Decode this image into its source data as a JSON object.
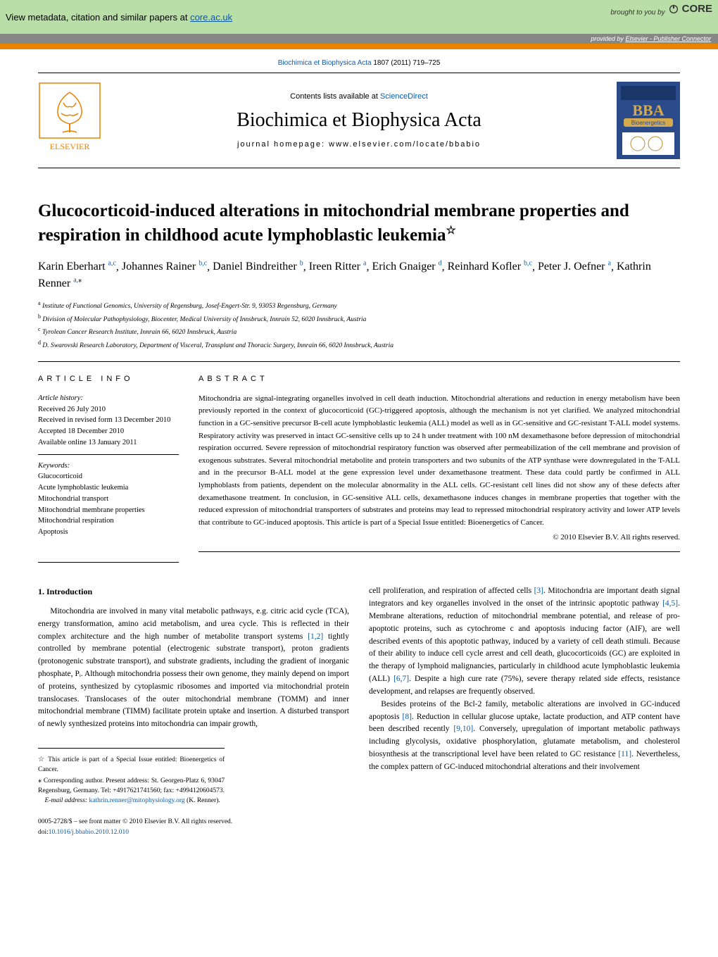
{
  "core_bar": {
    "text_prefix": "View metadata, citation and similar papers at ",
    "link_text": "core.ac.uk",
    "brought_by": "brought to you by",
    "core_name": "CORE",
    "provided_prefix": "provided by ",
    "provided_link": "Elsevier - Publisher Connector",
    "bg_color": "#b9dea7",
    "provided_bg": "#878787"
  },
  "orange_color": "#e98300",
  "citation": {
    "journal": "Biochimica et Biophysica Acta",
    "details": " 1807 (2011) 719–725"
  },
  "journal_header": {
    "contents_prefix": "Contents lists available at ",
    "contents_link": "ScienceDirect",
    "journal_name": "Biochimica et Biophysica Acta",
    "homepage_prefix": "journal homepage: ",
    "homepage": "www.elsevier.com/locate/bbabio",
    "elsevier_name": "ELSEVIER",
    "bba_label": "BBA",
    "bba_sub": "Bioenergetics"
  },
  "article": {
    "title": "Glucocorticoid-induced alterations in mitochondrial membrane properties and respiration in childhood acute lymphoblastic leukemia",
    "star": "☆"
  },
  "authors": [
    {
      "name": "Karin Eberhart",
      "aff": "a,c"
    },
    {
      "name": "Johannes Rainer",
      "aff": "b,c"
    },
    {
      "name": "Daniel Bindreither",
      "aff": "b"
    },
    {
      "name": "Ireen Ritter",
      "aff": "a"
    },
    {
      "name": "Erich Gnaiger",
      "aff": "d"
    },
    {
      "name": "Reinhard Kofler",
      "aff": "b,c"
    },
    {
      "name": "Peter J. Oefner",
      "aff": "a"
    },
    {
      "name": "Kathrin Renner",
      "aff": "a,",
      "corr": "⁎"
    }
  ],
  "affiliations": [
    {
      "sup": "a",
      "text": "Institute of Functional Genomics, University of Regensburg, Josef-Engert-Str. 9, 93053 Regensburg, Germany"
    },
    {
      "sup": "b",
      "text": "Division of Molecular Pathophysiology, Biocenter, Medical University of Innsbruck, Innrain 52, 6020 Innsbruck, Austria"
    },
    {
      "sup": "c",
      "text": "Tyrolean Cancer Research Institute, Innrain 66, 6020 Innsbruck, Austria"
    },
    {
      "sup": "d",
      "text": "D. Swarovski Research Laboratory, Department of Visceral, Transplant and Thoracic Surgery, Innrain 66, 6020 Innsbruck, Austria"
    }
  ],
  "info": {
    "head": "ARTICLE INFO",
    "history_label": "Article history:",
    "history": [
      "Received 26 July 2010",
      "Received in revised form 13 December 2010",
      "Accepted 18 December 2010",
      "Available online 13 January 2011"
    ],
    "keywords_label": "Keywords:",
    "keywords": [
      "Glucocorticoid",
      "Acute lymphoblastic leukemia",
      "Mitochondrial transport",
      "Mitochondrial membrane properties",
      "Mitochondrial respiration",
      "Apoptosis"
    ]
  },
  "abstract": {
    "head": "ABSTRACT",
    "text": "Mitochondria are signal-integrating organelles involved in cell death induction. Mitochondrial alterations and reduction in energy metabolism have been previously reported in the context of glucocorticoid (GC)-triggered apoptosis, although the mechanism is not yet clarified. We analyzed mitochondrial function in a GC-sensitive precursor B-cell acute lymphoblastic leukemia (ALL) model as well as in GC-sensitive and GC-resistant T-ALL model systems. Respiratory activity was preserved in intact GC-sensitive cells up to 24 h under treatment with 100 nM dexamethasone before depression of mitochondrial respiration occurred. Severe repression of mitochondrial respiratory function was observed after permeabilization of the cell membrane and provision of exogenous substrates. Several mitochondrial metabolite and protein transporters and two subunits of the ATP synthase were downregulated in the T-ALL and in the precursor B-ALL model at the gene expression level under dexamethasone treatment. These data could partly be confirmed in ALL lymphoblasts from patients, dependent on the molecular abnormality in the ALL cells. GC-resistant cell lines did not show any of these defects after dexamethasone treatment. In conclusion, in GC-sensitive ALL cells, dexamethasone induces changes in membrane properties that together with the reduced expression of mitochondrial transporters of substrates and proteins may lead to repressed mitochondrial respiratory activity and lower ATP levels that contribute to GC-induced apoptosis. This article is part of a Special Issue entitled: Bioenergetics of Cancer.",
    "copyright": "© 2010 Elsevier B.V. All rights reserved."
  },
  "body": {
    "heading": "1. Introduction",
    "col1": "Mitochondria are involved in many vital metabolic pathways, e.g. citric acid cycle (TCA), energy transformation, amino acid metabolism, and urea cycle. This is reflected in their complex architecture and the high number of metabolite transport systems [1,2] tightly controlled by membrane potential (electrogenic substrate transport), proton gradients (protonogenic substrate transport), and substrate gradients, including the gradient of inorganic phosphate, Pᵢ. Although mitochondria possess their own genome, they mainly depend on import of proteins, synthesized by cytoplasmic ribosomes and imported via mitochondrial protein translocases. Translocases of the outer mitochondrial membrane (TOMM) and inner mitochondrial membrane (TIMM) facilitate protein uptake and insertion. A disturbed transport of newly synthesized proteins into mitochondria can impair growth,",
    "col2_part1": "cell proliferation, and respiration of affected cells [3]. Mitochondria are important death signal integrators and key organelles involved in the onset of the intrinsic apoptotic pathway [4,5]. Membrane alterations, reduction of mitochondrial membrane potential, and release of pro-apoptotic proteins, such as cytochrome c and apoptosis inducing factor (AIF), are well described events of this apoptotic pathway, induced by a variety of cell death stimuli. Because of their ability to induce cell cycle arrest and cell death, glucocorticoids (GC) are exploited in the therapy of lymphoid malignancies, particularly in childhood acute lymphoblastic leukemia (ALL) [6,7]. Despite a high cure rate (75%), severe therapy related side effects, resistance development, and relapses are frequently observed.",
    "col2_part2": "Besides proteins of the Bcl-2 family, metabolic alterations are involved in GC-induced apoptosis [8]. Reduction in cellular glucose uptake, lactate production, and ATP content have been described recently [9,10]. Conversely, upregulation of important metabolic pathways including glycolysis, oxidative phosphorylation, glutamate metabolism, and cholesterol biosynthesis at the transcriptional level have been related to GC resistance [11]. Nevertheless, the complex pattern of GC-induced mitochondrial alterations and their involvement"
  },
  "footnotes": {
    "line1_sym": "☆",
    "line1": "This article is part of a Special Issue entitled: Bioenergetics of Cancer.",
    "line2_sym": "⁎",
    "line2": "Corresponding author. Present address: St. Georgen-Platz 6, 93047 Regensburg, Germany. Tel: +4917621741560; fax: +4994120604573.",
    "email_label": "E-mail address: ",
    "email": "kathrin.renner@mitophysiology.org",
    "email_person": " (K. Renner)."
  },
  "footer": {
    "line1": "0005-2728/$ – see front matter © 2010 Elsevier B.V. All rights reserved.",
    "doi_prefix": "doi:",
    "doi": "10.1016/j.bbabio.2010.12.010"
  },
  "colors": {
    "link": "#0c5aa6",
    "text": "#000000"
  }
}
